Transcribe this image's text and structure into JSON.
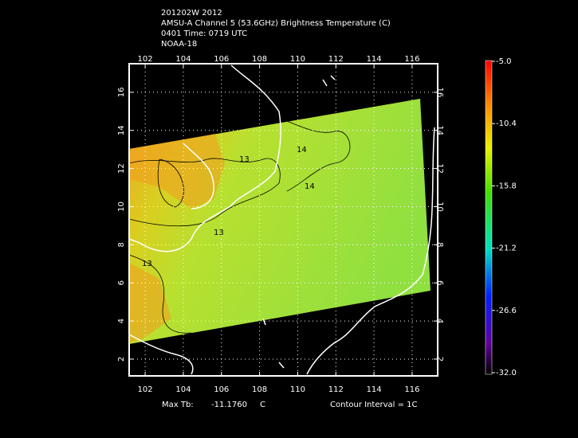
{
  "header": {
    "lines": [
      "201202W 2012",
      "AMSU-A Channel 5 (53.6GHz) Brightness Temperature (C)",
      "0401 Time: 0719 UTC",
      "NOAA-18"
    ]
  },
  "map": {
    "xlim": [
      101.16,
      117.34
    ],
    "ylim": [
      1.12,
      17.5
    ],
    "xticks": [
      102,
      104,
      106,
      108,
      110,
      112,
      114,
      116
    ],
    "yticks": [
      2,
      4,
      6,
      8,
      10,
      12,
      14,
      16
    ],
    "contour_labels": [
      "13",
      "13",
      "14",
      "14",
      "13"
    ]
  },
  "colorbar": {
    "lim": [
      -32,
      -5
    ],
    "ticks": [
      {
        "value": -5,
        "label": "-5.0"
      },
      -10.4,
      -15.8,
      -21.2,
      -26.6,
      {
        "value": -32,
        "label": "-32.0"
      }
    ]
  },
  "footer": {
    "max_tb_label": "Max Tb:",
    "max_tb_value": "-11.1760",
    "max_tb_unit": "C",
    "contour_interval": "Contour Interval = 1C"
  }
}
